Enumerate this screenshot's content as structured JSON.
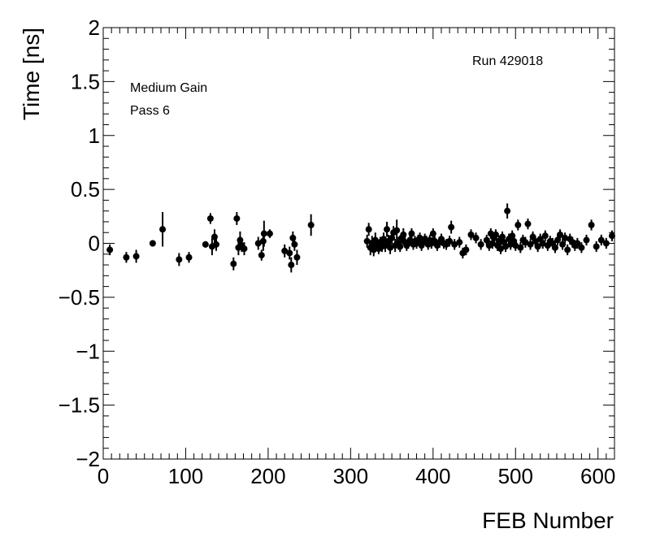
{
  "chart_data": {
    "type": "scatter",
    "xlabel": "FEB Number",
    "ylabel": "Time [ns]",
    "xlim": [
      0,
      620
    ],
    "ylim": [
      -2,
      2
    ],
    "x_ticks": [
      0,
      100,
      200,
      300,
      400,
      500,
      600
    ],
    "y_ticks": [
      -2,
      -1.5,
      -1,
      -0.5,
      0,
      0.5,
      1,
      1.5,
      2
    ],
    "y_tick_labels": [
      "−2",
      "−1.5",
      "−1",
      "−0.5",
      "0",
      "0.5",
      "1",
      "1.5",
      "2"
    ],
    "annotations": [
      "Medium Gain",
      "Pass 6",
      "Run 429018"
    ],
    "grid": false,
    "marker_color": "#000000",
    "series": [
      {
        "points": [
          {
            "x": 8,
            "y": -0.06,
            "err": 0.05
          },
          {
            "x": 28,
            "y": -0.13,
            "err": 0.05
          },
          {
            "x": 40,
            "y": -0.12,
            "err": 0.06
          },
          {
            "x": 60,
            "y": 0.0,
            "err": 0.03
          },
          {
            "x": 72,
            "y": 0.13,
            "err": 0.16
          },
          {
            "x": 92,
            "y": -0.15,
            "err": 0.06
          },
          {
            "x": 104,
            "y": -0.13,
            "err": 0.05
          },
          {
            "x": 124,
            "y": -0.01,
            "err": 0.03
          },
          {
            "x": 130,
            "y": 0.23,
            "err": 0.05
          },
          {
            "x": 132,
            "y": -0.03,
            "err": 0.08
          },
          {
            "x": 135,
            "y": 0.06,
            "err": 0.07
          },
          {
            "x": 137,
            "y": -0.01,
            "err": 0.06
          },
          {
            "x": 158,
            "y": -0.19,
            "err": 0.06
          },
          {
            "x": 162,
            "y": 0.23,
            "err": 0.06
          },
          {
            "x": 164,
            "y": -0.04,
            "err": 0.07
          },
          {
            "x": 166,
            "y": 0.03,
            "err": 0.08
          },
          {
            "x": 168,
            "y": -0.02,
            "err": 0.06
          },
          {
            "x": 171,
            "y": -0.05,
            "err": 0.06
          },
          {
            "x": 188,
            "y": 0.0,
            "err": 0.06
          },
          {
            "x": 192,
            "y": -0.11,
            "err": 0.05
          },
          {
            "x": 194,
            "y": 0.02,
            "err": 0.09
          },
          {
            "x": 195,
            "y": 0.09,
            "err": 0.12
          },
          {
            "x": 202,
            "y": 0.09,
            "err": 0.04
          },
          {
            "x": 220,
            "y": -0.07,
            "err": 0.06
          },
          {
            "x": 226,
            "y": -0.09,
            "err": 0.06
          },
          {
            "x": 228,
            "y": -0.2,
            "err": 0.07
          },
          {
            "x": 230,
            "y": 0.05,
            "err": 0.06
          },
          {
            "x": 232,
            "y": -0.01,
            "err": 0.06
          },
          {
            "x": 235,
            "y": -0.13,
            "err": 0.07
          },
          {
            "x": 252,
            "y": 0.17,
            "err": 0.1
          },
          {
            "x": 320,
            "y": 0.02,
            "err": 0.06
          },
          {
            "x": 322,
            "y": 0.13,
            "err": 0.06
          },
          {
            "x": 324,
            "y": -0.04,
            "err": 0.07
          },
          {
            "x": 326,
            "y": 0.0,
            "err": 0.07
          },
          {
            "x": 328,
            "y": -0.06,
            "err": 0.06
          },
          {
            "x": 330,
            "y": 0.03,
            "err": 0.07
          },
          {
            "x": 332,
            "y": -0.01,
            "err": 0.06
          },
          {
            "x": 334,
            "y": -0.05,
            "err": 0.05
          },
          {
            "x": 336,
            "y": 0.01,
            "err": 0.05
          },
          {
            "x": 338,
            "y": -0.03,
            "err": 0.05
          },
          {
            "x": 340,
            "y": 0.04,
            "err": 0.06
          },
          {
            "x": 342,
            "y": -0.02,
            "err": 0.06
          },
          {
            "x": 344,
            "y": 0.13,
            "err": 0.07
          },
          {
            "x": 346,
            "y": 0.02,
            "err": 0.06
          },
          {
            "x": 348,
            "y": -0.04,
            "err": 0.06
          },
          {
            "x": 350,
            "y": 0.05,
            "err": 0.06
          },
          {
            "x": 352,
            "y": 0.1,
            "err": 0.06
          },
          {
            "x": 354,
            "y": -0.02,
            "err": 0.06
          },
          {
            "x": 356,
            "y": 0.12,
            "err": 0.1
          },
          {
            "x": 358,
            "y": 0.0,
            "err": 0.06
          },
          {
            "x": 360,
            "y": -0.03,
            "err": 0.05
          },
          {
            "x": 362,
            "y": 0.05,
            "err": 0.05
          },
          {
            "x": 364,
            "y": 0.08,
            "err": 0.06
          },
          {
            "x": 366,
            "y": 0.01,
            "err": 0.05
          },
          {
            "x": 368,
            "y": -0.02,
            "err": 0.05
          },
          {
            "x": 370,
            "y": 0.0,
            "err": 0.05
          },
          {
            "x": 372,
            "y": 0.03,
            "err": 0.05
          },
          {
            "x": 374,
            "y": 0.09,
            "err": 0.05
          },
          {
            "x": 376,
            "y": -0.01,
            "err": 0.05
          },
          {
            "x": 378,
            "y": 0.02,
            "err": 0.05
          },
          {
            "x": 380,
            "y": 0.0,
            "err": 0.05
          },
          {
            "x": 382,
            "y": 0.03,
            "err": 0.05
          },
          {
            "x": 384,
            "y": 0.05,
            "err": 0.05
          },
          {
            "x": 386,
            "y": -0.02,
            "err": 0.05
          },
          {
            "x": 388,
            "y": 0.01,
            "err": 0.05
          },
          {
            "x": 390,
            "y": 0.04,
            "err": 0.05
          },
          {
            "x": 392,
            "y": 0.02,
            "err": 0.05
          },
          {
            "x": 394,
            "y": -0.01,
            "err": 0.05
          },
          {
            "x": 396,
            "y": 0.03,
            "err": 0.05
          },
          {
            "x": 398,
            "y": 0.0,
            "err": 0.05
          },
          {
            "x": 400,
            "y": 0.09,
            "err": 0.05
          },
          {
            "x": 402,
            "y": 0.02,
            "err": 0.05
          },
          {
            "x": 405,
            "y": -0.02,
            "err": 0.05
          },
          {
            "x": 408,
            "y": 0.01,
            "err": 0.05
          },
          {
            "x": 410,
            "y": 0.04,
            "err": 0.05
          },
          {
            "x": 413,
            "y": 0.0,
            "err": 0.05
          },
          {
            "x": 416,
            "y": -0.01,
            "err": 0.05
          },
          {
            "x": 420,
            "y": 0.02,
            "err": 0.05
          },
          {
            "x": 422,
            "y": 0.15,
            "err": 0.06
          },
          {
            "x": 426,
            "y": -0.01,
            "err": 0.05
          },
          {
            "x": 432,
            "y": 0.01,
            "err": 0.05
          },
          {
            "x": 436,
            "y": -0.09,
            "err": 0.05
          },
          {
            "x": 440,
            "y": -0.06,
            "err": 0.05
          },
          {
            "x": 446,
            "y": 0.08,
            "err": 0.05
          },
          {
            "x": 452,
            "y": 0.05,
            "err": 0.05
          },
          {
            "x": 458,
            "y": -0.01,
            "err": 0.05
          },
          {
            "x": 465,
            "y": 0.03,
            "err": 0.05
          },
          {
            "x": 468,
            "y": -0.02,
            "err": 0.05
          },
          {
            "x": 470,
            "y": 0.09,
            "err": 0.05
          },
          {
            "x": 472,
            "y": 0.0,
            "err": 0.05
          },
          {
            "x": 474,
            "y": 0.05,
            "err": 0.05
          },
          {
            "x": 476,
            "y": 0.08,
            "err": 0.05
          },
          {
            "x": 478,
            "y": -0.02,
            "err": 0.05
          },
          {
            "x": 480,
            "y": 0.02,
            "err": 0.05
          },
          {
            "x": 482,
            "y": -0.05,
            "err": 0.05
          },
          {
            "x": 484,
            "y": 0.06,
            "err": 0.05
          },
          {
            "x": 486,
            "y": 0.01,
            "err": 0.05
          },
          {
            "x": 488,
            "y": -0.03,
            "err": 0.05
          },
          {
            "x": 490,
            "y": 0.3,
            "err": 0.07
          },
          {
            "x": 492,
            "y": 0.04,
            "err": 0.05
          },
          {
            "x": 494,
            "y": -0.01,
            "err": 0.05
          },
          {
            "x": 496,
            "y": 0.07,
            "err": 0.05
          },
          {
            "x": 498,
            "y": 0.02,
            "err": 0.05
          },
          {
            "x": 500,
            "y": -0.02,
            "err": 0.05
          },
          {
            "x": 503,
            "y": 0.17,
            "err": 0.05
          },
          {
            "x": 506,
            "y": -0.04,
            "err": 0.05
          },
          {
            "x": 509,
            "y": 0.03,
            "err": 0.05
          },
          {
            "x": 512,
            "y": 0.01,
            "err": 0.05
          },
          {
            "x": 515,
            "y": 0.18,
            "err": 0.05
          },
          {
            "x": 518,
            "y": -0.01,
            "err": 0.05
          },
          {
            "x": 521,
            "y": 0.06,
            "err": 0.05
          },
          {
            "x": 524,
            "y": 0.02,
            "err": 0.05
          },
          {
            "x": 527,
            "y": -0.03,
            "err": 0.05
          },
          {
            "x": 530,
            "y": 0.04,
            "err": 0.05
          },
          {
            "x": 533,
            "y": 0.0,
            "err": 0.05
          },
          {
            "x": 536,
            "y": 0.07,
            "err": 0.05
          },
          {
            "x": 539,
            "y": -0.02,
            "err": 0.05
          },
          {
            "x": 542,
            "y": 0.02,
            "err": 0.05
          },
          {
            "x": 545,
            "y": 0.0,
            "err": 0.05
          },
          {
            "x": 548,
            "y": -0.04,
            "err": 0.05
          },
          {
            "x": 551,
            "y": 0.03,
            "err": 0.05
          },
          {
            "x": 554,
            "y": 0.08,
            "err": 0.05
          },
          {
            "x": 557,
            "y": -0.01,
            "err": 0.05
          },
          {
            "x": 560,
            "y": 0.05,
            "err": 0.05
          },
          {
            "x": 563,
            "y": -0.06,
            "err": 0.05
          },
          {
            "x": 566,
            "y": 0.04,
            "err": 0.05
          },
          {
            "x": 569,
            "y": 0.01,
            "err": 0.05
          },
          {
            "x": 572,
            "y": -0.02,
            "err": 0.05
          },
          {
            "x": 575,
            "y": 0.0,
            "err": 0.05
          },
          {
            "x": 580,
            "y": -0.04,
            "err": 0.05
          },
          {
            "x": 586,
            "y": 0.03,
            "err": 0.05
          },
          {
            "x": 592,
            "y": 0.17,
            "err": 0.05
          },
          {
            "x": 598,
            "y": -0.03,
            "err": 0.05
          },
          {
            "x": 604,
            "y": 0.03,
            "err": 0.05
          },
          {
            "x": 610,
            "y": 0.0,
            "err": 0.05
          },
          {
            "x": 617,
            "y": 0.07,
            "err": 0.05
          }
        ]
      }
    ]
  }
}
